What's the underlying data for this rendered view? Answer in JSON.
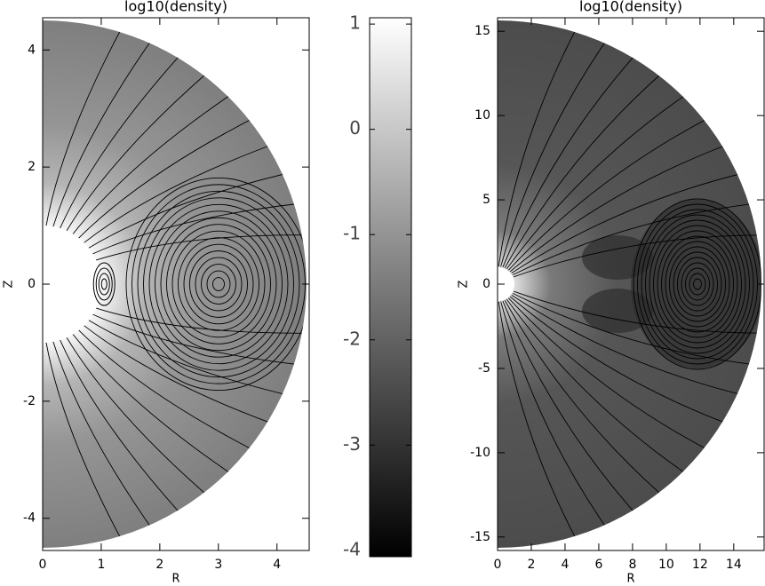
{
  "chart_data": [
    {
      "type": "heatmap",
      "title": "log10(density)",
      "xlabel": "R",
      "ylabel": "Z",
      "xlim": [
        0,
        4.55
      ],
      "ylim": [
        -4.55,
        4.55
      ],
      "xticks": [
        0,
        1,
        2,
        3,
        4
      ],
      "yticks": [
        4,
        2,
        0,
        -2,
        -4
      ]
    },
    {
      "type": "colorbar",
      "ylim": [
        -4.06,
        1.06
      ],
      "yticks": [
        1,
        0,
        -1,
        -2,
        -3,
        -4
      ]
    },
    {
      "type": "heatmap",
      "title": "log10(density)",
      "xlabel": "R",
      "ylabel": "Z",
      "xlim": [
        0,
        15.8
      ],
      "ylim": [
        -15.8,
        15.8
      ],
      "xticks": [
        0,
        2,
        4,
        6,
        8,
        10,
        12,
        14
      ],
      "yticks": [
        15,
        10,
        5,
        0,
        -5,
        -10,
        -15
      ]
    }
  ]
}
